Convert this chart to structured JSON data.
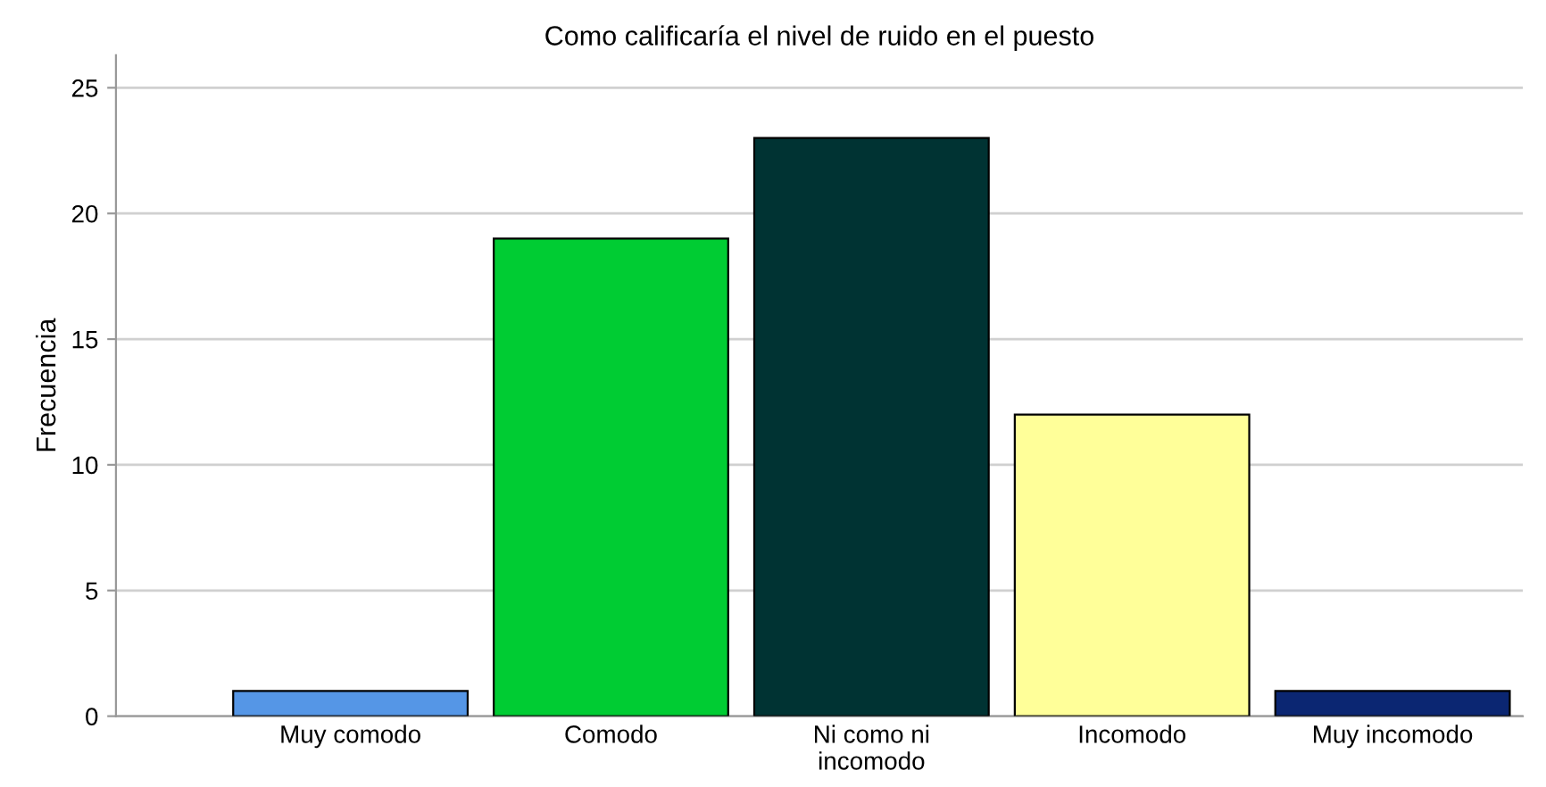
{
  "chart_data": {
    "type": "bar",
    "title": "Como calificaría el nivel de ruido en el puesto",
    "ylabel": "Frecuencia",
    "categories": [
      "Muy comodo",
      "Comodo",
      "Ni como ni\nincomodo",
      "Incomodo",
      "Muy incomodo"
    ],
    "values": [
      1,
      19,
      23,
      12,
      1
    ],
    "colors": [
      "#5596e6",
      "#00cc33",
      "#003333",
      "#ffff99",
      "#0b2672"
    ],
    "ylim": [
      0,
      26.3
    ],
    "yticks": [
      0,
      5,
      10,
      15,
      20,
      25
    ],
    "grid": "y"
  }
}
